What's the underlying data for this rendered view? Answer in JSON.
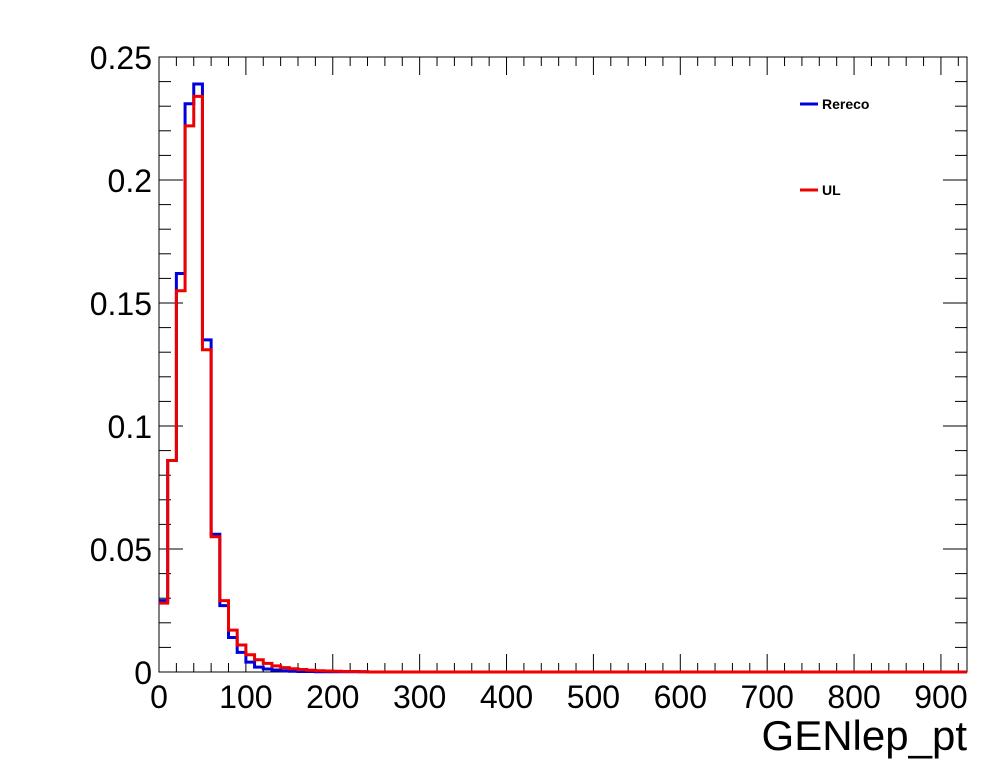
{
  "chart_data": {
    "type": "line",
    "style": "step-histogram",
    "title": "",
    "xlabel": "GENlep_pt",
    "ylabel": "",
    "xlim": [
      0,
      930
    ],
    "ylim": [
      0,
      0.25
    ],
    "x_ticks": [
      0,
      100,
      200,
      300,
      400,
      500,
      600,
      700,
      800,
      900
    ],
    "y_ticks": [
      0,
      0.05,
      0.1,
      0.15,
      0.2,
      0.25
    ],
    "y_tick_labels": [
      "0",
      "0.05",
      "0.1",
      "0.15",
      "0.2",
      "0.25"
    ],
    "bin_width": 10,
    "grid": false,
    "legend_position": "top-right",
    "series": [
      {
        "name": "Rereco",
        "color": "#0000dd",
        "values": [
          0.029,
          0.086,
          0.162,
          0.231,
          0.239,
          0.135,
          0.056,
          0.027,
          0.014,
          0.008,
          0.004,
          0.002,
          0.0012,
          0.0008,
          0.0005,
          0.0003,
          0.0002,
          0.0002,
          0.0001,
          0.0001,
          0.0001,
          0.0001,
          0.0001,
          0.0001
        ]
      },
      {
        "name": "UL",
        "color": "#ee0000",
        "values": [
          0.028,
          0.086,
          0.155,
          0.222,
          0.234,
          0.131,
          0.055,
          0.029,
          0.017,
          0.011,
          0.007,
          0.005,
          0.0035,
          0.0025,
          0.0018,
          0.0013,
          0.001,
          0.0007,
          0.0005,
          0.0004,
          0.0003,
          0.0002,
          0.0002,
          0.0001
        ]
      }
    ]
  }
}
